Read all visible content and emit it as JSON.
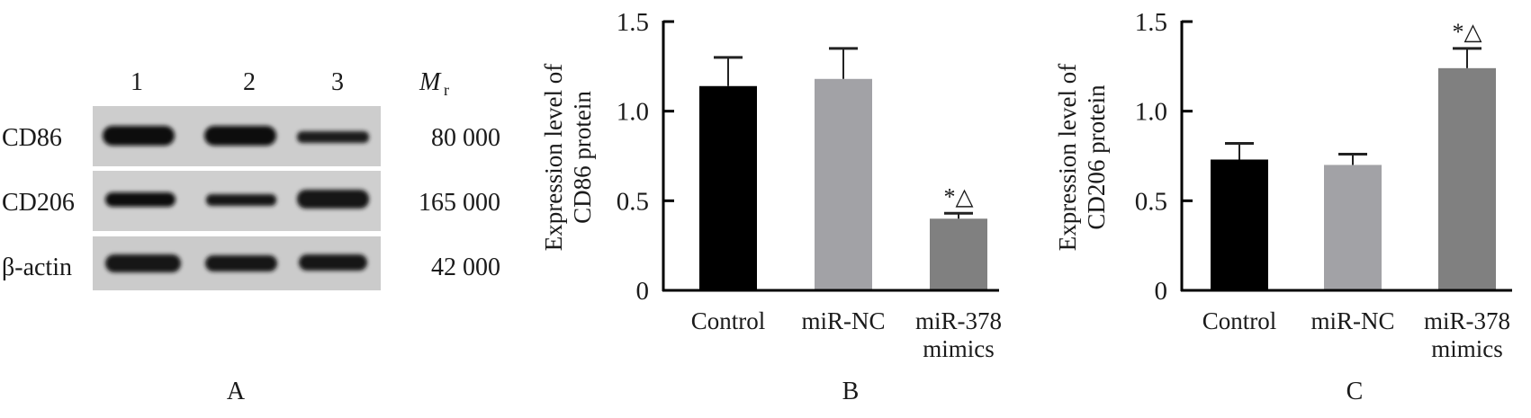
{
  "panel_labels": [
    "A",
    "B",
    "C"
  ],
  "blot": {
    "lanes": [
      "1",
      "2",
      "3"
    ],
    "mr_label": "M",
    "mr_sub": "r",
    "rows": [
      {
        "protein": "CD86",
        "mw": "80 000"
      },
      {
        "protein": "CD206",
        "mw": "165 000"
      },
      {
        "protein": "β-actin",
        "mw": "42 000"
      }
    ]
  },
  "chart_data": [
    {
      "type": "bar",
      "panel": "B",
      "categories": [
        [
          "Control"
        ],
        [
          "miR-NC"
        ],
        [
          "miR-378",
          "mimics"
        ]
      ],
      "values": [
        1.14,
        1.18,
        0.4
      ],
      "error": [
        0.16,
        0.17,
        0.03
      ],
      "annotations": [
        "",
        "",
        "*△"
      ],
      "colors": [
        "#000000",
        "#a2a2a6",
        "#808080"
      ],
      "ylabel": [
        "Expression level of",
        "CD86 protein"
      ],
      "ylim": [
        0,
        1.5
      ],
      "yticks": [
        "0",
        "0.5",
        "1.0",
        "1.5"
      ],
      "ytick_values": [
        0,
        0.5,
        1.0,
        1.5
      ],
      "grid": false
    },
    {
      "type": "bar",
      "panel": "C",
      "categories": [
        [
          "Control"
        ],
        [
          "miR-NC"
        ],
        [
          "miR-378",
          "mimics"
        ]
      ],
      "values": [
        0.73,
        0.7,
        1.24
      ],
      "error": [
        0.09,
        0.06,
        0.11
      ],
      "annotations": [
        "",
        "",
        "*△"
      ],
      "colors": [
        "#000000",
        "#a2a2a6",
        "#808080"
      ],
      "ylabel": [
        "Expression level of",
        "CD206 protein"
      ],
      "ylim": [
        0,
        1.5
      ],
      "yticks": [
        "0",
        "0.5",
        "1.0",
        "1.5"
      ],
      "ytick_values": [
        0,
        0.5,
        1.0,
        1.5
      ],
      "grid": false
    }
  ]
}
